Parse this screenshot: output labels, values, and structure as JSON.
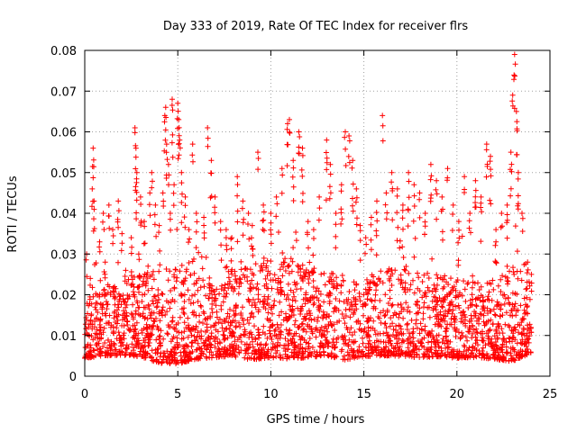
{
  "chart_data": {
    "type": "scatter",
    "title": "Day 333 of 2019, Rate Of TEC Index for receiver flrs",
    "xlabel": "GPS time / hours",
    "ylabel": "ROTI / TECUs",
    "xlim": [
      0,
      25
    ],
    "ylim": [
      0,
      0.08
    ],
    "x_ticks": [
      "0",
      "5",
      "10",
      "15",
      "20",
      "25"
    ],
    "y_ticks": [
      "0",
      "0.01",
      "0.02",
      "0.03",
      "0.04",
      "0.05",
      "0.06",
      "0.07",
      "0.08"
    ],
    "grid": true,
    "marker": "+",
    "color": "#ff0000",
    "legend": "none",
    "series": [
      {
        "points": [
          [
            0.1,
            0.03
          ],
          [
            0.2,
            0.012
          ],
          [
            0.3,
            0.024
          ],
          [
            0.4,
            0.046
          ],
          [
            0.45,
            0.056
          ],
          [
            0.5,
            0.043
          ],
          [
            0.6,
            0.018
          ],
          [
            0.8,
            0.033
          ],
          [
            1.0,
            0.04
          ],
          [
            1.1,
            0.028
          ],
          [
            1.3,
            0.042
          ],
          [
            1.5,
            0.036
          ],
          [
            1.6,
            0.022
          ],
          [
            1.8,
            0.043
          ],
          [
            2.0,
            0.035
          ],
          [
            2.2,
            0.026
          ],
          [
            2.5,
            0.034
          ],
          [
            2.7,
            0.061
          ],
          [
            2.75,
            0.056
          ],
          [
            2.8,
            0.05
          ],
          [
            2.9,
            0.03
          ],
          [
            3.0,
            0.044
          ],
          [
            3.2,
            0.038
          ],
          [
            3.4,
            0.027
          ],
          [
            3.5,
            0.045
          ],
          [
            3.6,
            0.05
          ],
          [
            3.8,
            0.042
          ],
          [
            4.0,
            0.037
          ],
          [
            4.2,
            0.045
          ],
          [
            4.3,
            0.064
          ],
          [
            4.35,
            0.066
          ],
          [
            4.4,
            0.057
          ],
          [
            4.5,
            0.052
          ],
          [
            4.6,
            0.04
          ],
          [
            4.7,
            0.068
          ],
          [
            4.8,
            0.047
          ],
          [
            5.0,
            0.067
          ],
          [
            5.05,
            0.063
          ],
          [
            5.1,
            0.058
          ],
          [
            5.2,
            0.05
          ],
          [
            5.4,
            0.044
          ],
          [
            5.6,
            0.036
          ],
          [
            5.8,
            0.057
          ],
          [
            6.0,
            0.04
          ],
          [
            6.4,
            0.039
          ],
          [
            6.6,
            0.061
          ],
          [
            6.8,
            0.053
          ],
          [
            7.0,
            0.044
          ],
          [
            7.3,
            0.038
          ],
          [
            7.6,
            0.036
          ],
          [
            7.9,
            0.034
          ],
          [
            8.2,
            0.049
          ],
          [
            8.5,
            0.043
          ],
          [
            8.8,
            0.04
          ],
          [
            9.0,
            0.037
          ],
          [
            9.3,
            0.055
          ],
          [
            9.6,
            0.042
          ],
          [
            10.0,
            0.04
          ],
          [
            10.3,
            0.044
          ],
          [
            10.6,
            0.051
          ],
          [
            10.9,
            0.062
          ],
          [
            11.0,
            0.063
          ],
          [
            11.2,
            0.053
          ],
          [
            11.5,
            0.06
          ],
          [
            11.7,
            0.056
          ],
          [
            12.0,
            0.038
          ],
          [
            12.3,
            0.036
          ],
          [
            12.6,
            0.044
          ],
          [
            13.0,
            0.058
          ],
          [
            13.2,
            0.052
          ],
          [
            13.5,
            0.04
          ],
          [
            13.8,
            0.047
          ],
          [
            14.0,
            0.06
          ],
          [
            14.2,
            0.059
          ],
          [
            14.4,
            0.053
          ],
          [
            14.6,
            0.046
          ],
          [
            14.8,
            0.037
          ],
          [
            15.1,
            0.034
          ],
          [
            15.4,
            0.039
          ],
          [
            15.7,
            0.043
          ],
          [
            16.0,
            0.064
          ],
          [
            16.2,
            0.045
          ],
          [
            16.5,
            0.05
          ],
          [
            16.8,
            0.046
          ],
          [
            17.1,
            0.042
          ],
          [
            17.4,
            0.05
          ],
          [
            17.7,
            0.047
          ],
          [
            18.0,
            0.045
          ],
          [
            18.3,
            0.04
          ],
          [
            18.6,
            0.052
          ],
          [
            18.9,
            0.048
          ],
          [
            19.2,
            0.044
          ],
          [
            19.5,
            0.051
          ],
          [
            19.8,
            0.042
          ],
          [
            20.1,
            0.038
          ],
          [
            20.4,
            0.049
          ],
          [
            20.7,
            0.04
          ],
          [
            21.0,
            0.048
          ],
          [
            21.3,
            0.044
          ],
          [
            21.6,
            0.057
          ],
          [
            21.8,
            0.054
          ],
          [
            22.1,
            0.036
          ],
          [
            22.4,
            0.04
          ],
          [
            22.7,
            0.042
          ],
          [
            22.9,
            0.055
          ],
          [
            23.0,
            0.069
          ],
          [
            23.1,
            0.079
          ],
          [
            23.2,
            0.065
          ],
          [
            23.3,
            0.05
          ],
          [
            23.5,
            0.04
          ],
          [
            23.8,
            0.028
          ],
          [
            24.0,
            0.025
          ]
        ],
        "envelope": [
          [
            0.0,
            0.0044,
            0.018
          ],
          [
            1.0,
            0.005,
            0.022
          ],
          [
            2.0,
            0.0052,
            0.024
          ],
          [
            3.0,
            0.0048,
            0.025
          ],
          [
            4.0,
            0.0032,
            0.027
          ],
          [
            5.0,
            0.003,
            0.028
          ],
          [
            6.0,
            0.0042,
            0.026
          ],
          [
            7.0,
            0.0046,
            0.025
          ],
          [
            8.0,
            0.0048,
            0.026
          ],
          [
            9.0,
            0.004,
            0.028
          ],
          [
            10.0,
            0.0046,
            0.027
          ],
          [
            11.0,
            0.0042,
            0.029
          ],
          [
            12.0,
            0.0046,
            0.027
          ],
          [
            13.0,
            0.005,
            0.025
          ],
          [
            14.0,
            0.004,
            0.026
          ],
          [
            15.0,
            0.0048,
            0.024
          ],
          [
            16.0,
            0.005,
            0.026
          ],
          [
            17.0,
            0.0048,
            0.027
          ],
          [
            18.0,
            0.0046,
            0.026
          ],
          [
            19.0,
            0.0048,
            0.025
          ],
          [
            20.0,
            0.0044,
            0.024
          ],
          [
            21.0,
            0.0046,
            0.024
          ],
          [
            22.0,
            0.0042,
            0.023
          ],
          [
            23.0,
            0.0036,
            0.027
          ],
          [
            24.0,
            0.0058,
            0.024
          ]
        ]
      }
    ]
  }
}
